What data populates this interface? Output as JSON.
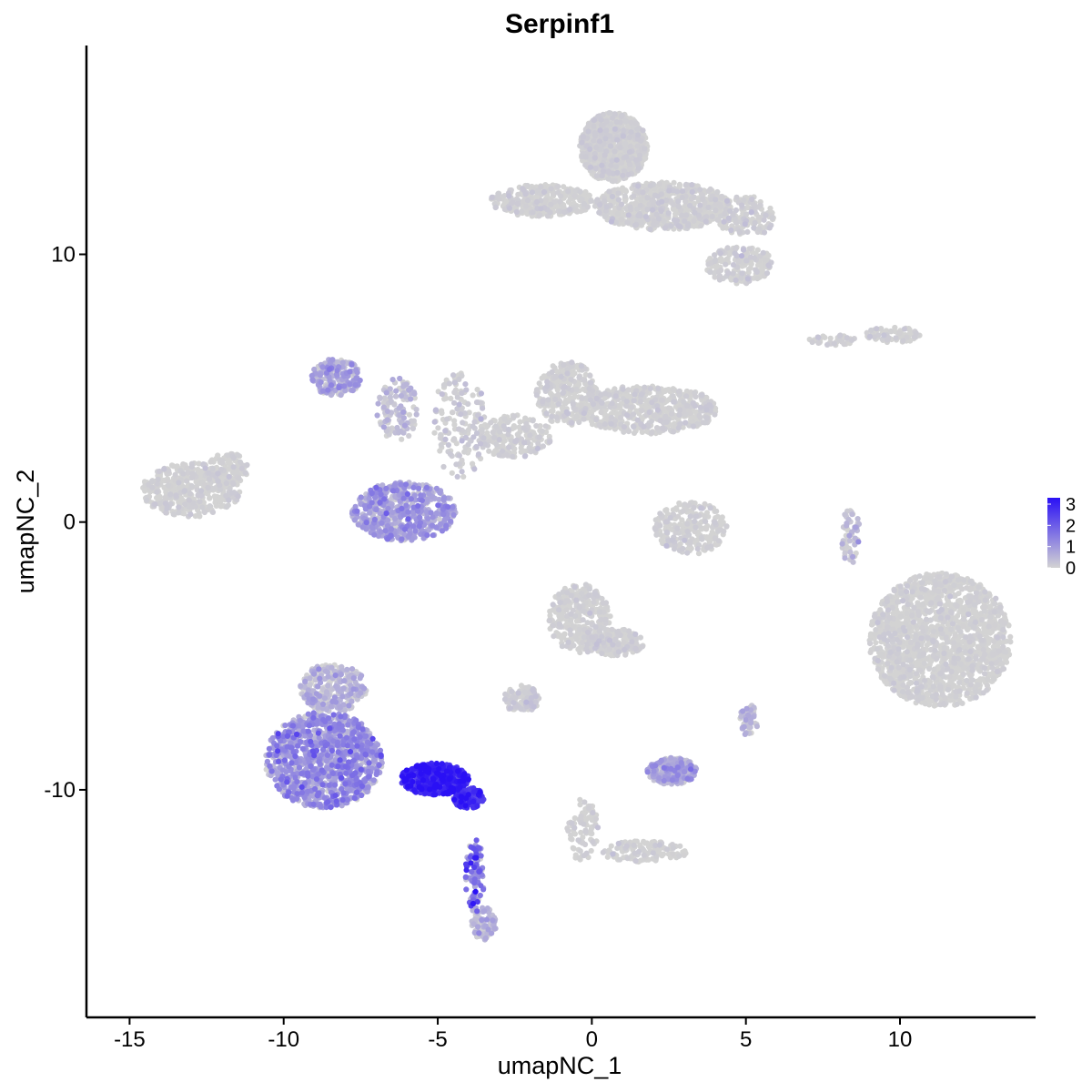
{
  "chart_data": {
    "type": "scatter",
    "title": "Serpinf1",
    "xlabel": "umapNC_1",
    "ylabel": "umapNC_2",
    "xlim": [
      -16.4,
      14.4
    ],
    "ylim": [
      -18.5,
      17.8
    ],
    "x_ticks": [
      -15,
      -10,
      -5,
      0,
      5,
      10
    ],
    "x_tick_labels": [
      "-15",
      "-10",
      "-5",
      "0",
      "5",
      "10"
    ],
    "y_ticks": [
      -10,
      0,
      10
    ],
    "y_tick_labels": [
      "-10",
      "0",
      "10"
    ],
    "grid": false,
    "point_color_low": "#d3d3d3",
    "point_color_high": "#2a10f5",
    "color_scale": {
      "label": "",
      "min": 0,
      "max": 3.3,
      "ticks": [
        0,
        1,
        2,
        3
      ],
      "tick_labels": [
        "0",
        "1",
        "2",
        "3"
      ]
    },
    "legend_position": "right",
    "clusters": [
      {
        "cx": 0.7,
        "cy": 14.0,
        "rx": 1.1,
        "ry": 1.3,
        "n": 900,
        "mean": 0.0,
        "sd": 0.1
      },
      {
        "cx": 2.3,
        "cy": 11.8,
        "rx": 2.2,
        "ry": 0.9,
        "n": 700,
        "mean": 0.0,
        "sd": 0.1
      },
      {
        "cx": 5.0,
        "cy": 11.4,
        "rx": 0.9,
        "ry": 0.8,
        "n": 150,
        "mean": 0.0,
        "sd": 0.15
      },
      {
        "cx": 4.8,
        "cy": 9.6,
        "rx": 1.1,
        "ry": 0.7,
        "n": 200,
        "mean": 0.0,
        "sd": 0.15
      },
      {
        "cx": -1.6,
        "cy": 12.0,
        "rx": 1.7,
        "ry": 0.6,
        "n": 300,
        "mean": 0.0,
        "sd": 0.1
      },
      {
        "cx": 9.8,
        "cy": 7.0,
        "rx": 0.9,
        "ry": 0.3,
        "n": 70,
        "mean": 0.0,
        "sd": 0.1
      },
      {
        "cx": 7.8,
        "cy": 6.8,
        "rx": 0.8,
        "ry": 0.2,
        "n": 40,
        "mean": 0.0,
        "sd": 0.1
      },
      {
        "cx": -13.0,
        "cy": 1.2,
        "rx": 1.6,
        "ry": 1.0,
        "n": 450,
        "mean": 0.0,
        "sd": 0.1
      },
      {
        "cx": -11.8,
        "cy": 2.0,
        "rx": 0.7,
        "ry": 0.6,
        "n": 90,
        "mean": 0.0,
        "sd": 0.1
      },
      {
        "cx": -8.3,
        "cy": 5.4,
        "rx": 0.8,
        "ry": 0.7,
        "n": 220,
        "mean": 0.55,
        "sd": 0.45
      },
      {
        "cx": -6.3,
        "cy": 4.2,
        "rx": 0.7,
        "ry": 1.2,
        "n": 120,
        "mean": 0.2,
        "sd": 0.3
      },
      {
        "cx": -4.3,
        "cy": 3.6,
        "rx": 0.9,
        "ry": 2.0,
        "n": 160,
        "mean": 0.05,
        "sd": 0.2
      },
      {
        "cx": -2.5,
        "cy": 3.2,
        "rx": 1.2,
        "ry": 0.8,
        "n": 200,
        "mean": 0.02,
        "sd": 0.1
      },
      {
        "cx": -0.8,
        "cy": 4.8,
        "rx": 1.0,
        "ry": 1.2,
        "n": 300,
        "mean": 0.0,
        "sd": 0.1
      },
      {
        "cx": 1.8,
        "cy": 4.2,
        "rx": 2.3,
        "ry": 0.9,
        "n": 600,
        "mean": 0.0,
        "sd": 0.1
      },
      {
        "cx": -6.1,
        "cy": 0.4,
        "rx": 1.7,
        "ry": 1.1,
        "n": 550,
        "mean": 0.75,
        "sd": 0.45
      },
      {
        "cx": 3.2,
        "cy": -0.2,
        "rx": 1.2,
        "ry": 1.0,
        "n": 260,
        "mean": 0.0,
        "sd": 0.1
      },
      {
        "cx": 8.4,
        "cy": -0.5,
        "rx": 0.3,
        "ry": 1.2,
        "n": 60,
        "mean": 0.2,
        "sd": 0.3
      },
      {
        "cx": 11.3,
        "cy": -4.4,
        "rx": 2.3,
        "ry": 2.5,
        "n": 1600,
        "mean": 0.0,
        "sd": 0.08
      },
      {
        "cx": -0.4,
        "cy": -3.6,
        "rx": 1.0,
        "ry": 1.3,
        "n": 350,
        "mean": 0.0,
        "sd": 0.1
      },
      {
        "cx": 0.8,
        "cy": -4.5,
        "rx": 0.9,
        "ry": 0.5,
        "n": 160,
        "mean": 0.0,
        "sd": 0.1
      },
      {
        "cx": -2.3,
        "cy": -6.6,
        "rx": 0.6,
        "ry": 0.5,
        "n": 120,
        "mean": 0.05,
        "sd": 0.15
      },
      {
        "cx": 2.6,
        "cy": -9.3,
        "rx": 0.8,
        "ry": 0.5,
        "n": 220,
        "mean": 0.55,
        "sd": 0.45
      },
      {
        "cx": 5.1,
        "cy": -7.4,
        "rx": 0.3,
        "ry": 0.6,
        "n": 50,
        "mean": 0.3,
        "sd": 0.3
      },
      {
        "cx": -0.3,
        "cy": -11.5,
        "rx": 0.5,
        "ry": 1.2,
        "n": 90,
        "mean": 0.0,
        "sd": 0.1
      },
      {
        "cx": 1.7,
        "cy": -12.3,
        "rx": 1.4,
        "ry": 0.4,
        "n": 120,
        "mean": 0.0,
        "sd": 0.1
      },
      {
        "cx": -8.7,
        "cy": -8.9,
        "rx": 1.9,
        "ry": 1.8,
        "n": 1100,
        "mean": 0.9,
        "sd": 0.5
      },
      {
        "cx": -8.4,
        "cy": -6.2,
        "rx": 1.1,
        "ry": 0.9,
        "n": 300,
        "mean": 0.25,
        "sd": 0.35
      },
      {
        "cx": -5.1,
        "cy": -9.6,
        "rx": 1.1,
        "ry": 0.6,
        "n": 500,
        "mean": 2.7,
        "sd": 0.45
      },
      {
        "cx": -4.0,
        "cy": -10.3,
        "rx": 0.5,
        "ry": 0.4,
        "n": 120,
        "mean": 2.5,
        "sd": 0.5
      },
      {
        "cx": -3.8,
        "cy": -13.2,
        "rx": 0.3,
        "ry": 1.4,
        "n": 90,
        "mean": 1.3,
        "sd": 0.8
      },
      {
        "cx": -3.5,
        "cy": -15.0,
        "rx": 0.4,
        "ry": 0.6,
        "n": 100,
        "mean": 0.2,
        "sd": 0.35
      }
    ]
  }
}
